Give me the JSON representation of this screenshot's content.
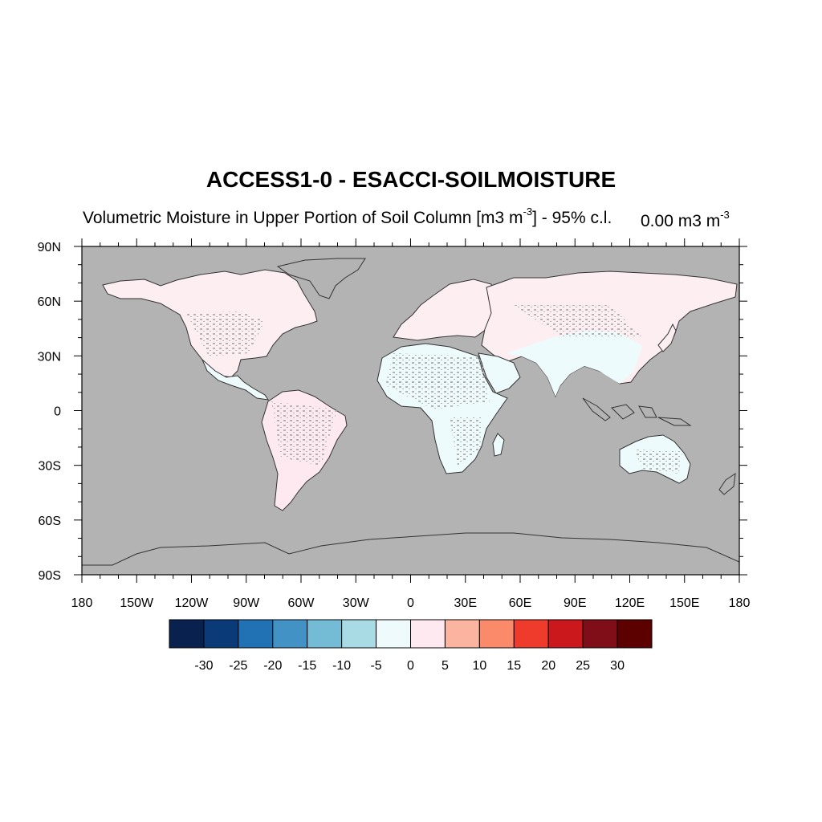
{
  "title": "ACCESS1-0 - ESACCI-SOILMOISTURE",
  "subtitle": {
    "main": "Volumetric Moisture in Upper Portion of Soil Column [m3 m",
    "sup": "-3",
    "tail": "] - 95% c.l."
  },
  "right_label": {
    "main": "0.00 m3 m",
    "sup": "-3"
  },
  "map": {
    "projection": "cylindrical-equidistant",
    "lon_range": [
      -180,
      180
    ],
    "lat_range": [
      -90,
      90
    ],
    "y_ticks": [
      "90N",
      "60N",
      "30N",
      "0",
      "30S",
      "60S",
      "90S"
    ],
    "x_ticks": [
      "180",
      "150W",
      "120W",
      "90W",
      "60W",
      "30W",
      "0",
      "30E",
      "60E",
      "90E",
      "120E",
      "150E",
      "180"
    ],
    "missing_color": "#b3b3b3",
    "land_fill_dominant": {
      "north_america": "#fdeef2",
      "eurasia_north": "#fdeef2",
      "africa_asia_south": "#eefbfd",
      "australia": "#eefbfd"
    }
  },
  "colorbar": {
    "colors": [
      "#08214f",
      "#0a3a78",
      "#2171b5",
      "#4292c6",
      "#74bcd6",
      "#a8dbe3",
      "#effafd",
      "#fde9ef",
      "#fbb4a0",
      "#fb8a6a",
      "#ef3b2c",
      "#cb181d",
      "#7f0e18",
      "#5d0000"
    ],
    "labels": [
      "-30",
      "-25",
      "-20",
      "-15",
      "-10",
      "-5",
      "0",
      "5",
      "10",
      "15",
      "20",
      "25",
      "30"
    ]
  }
}
